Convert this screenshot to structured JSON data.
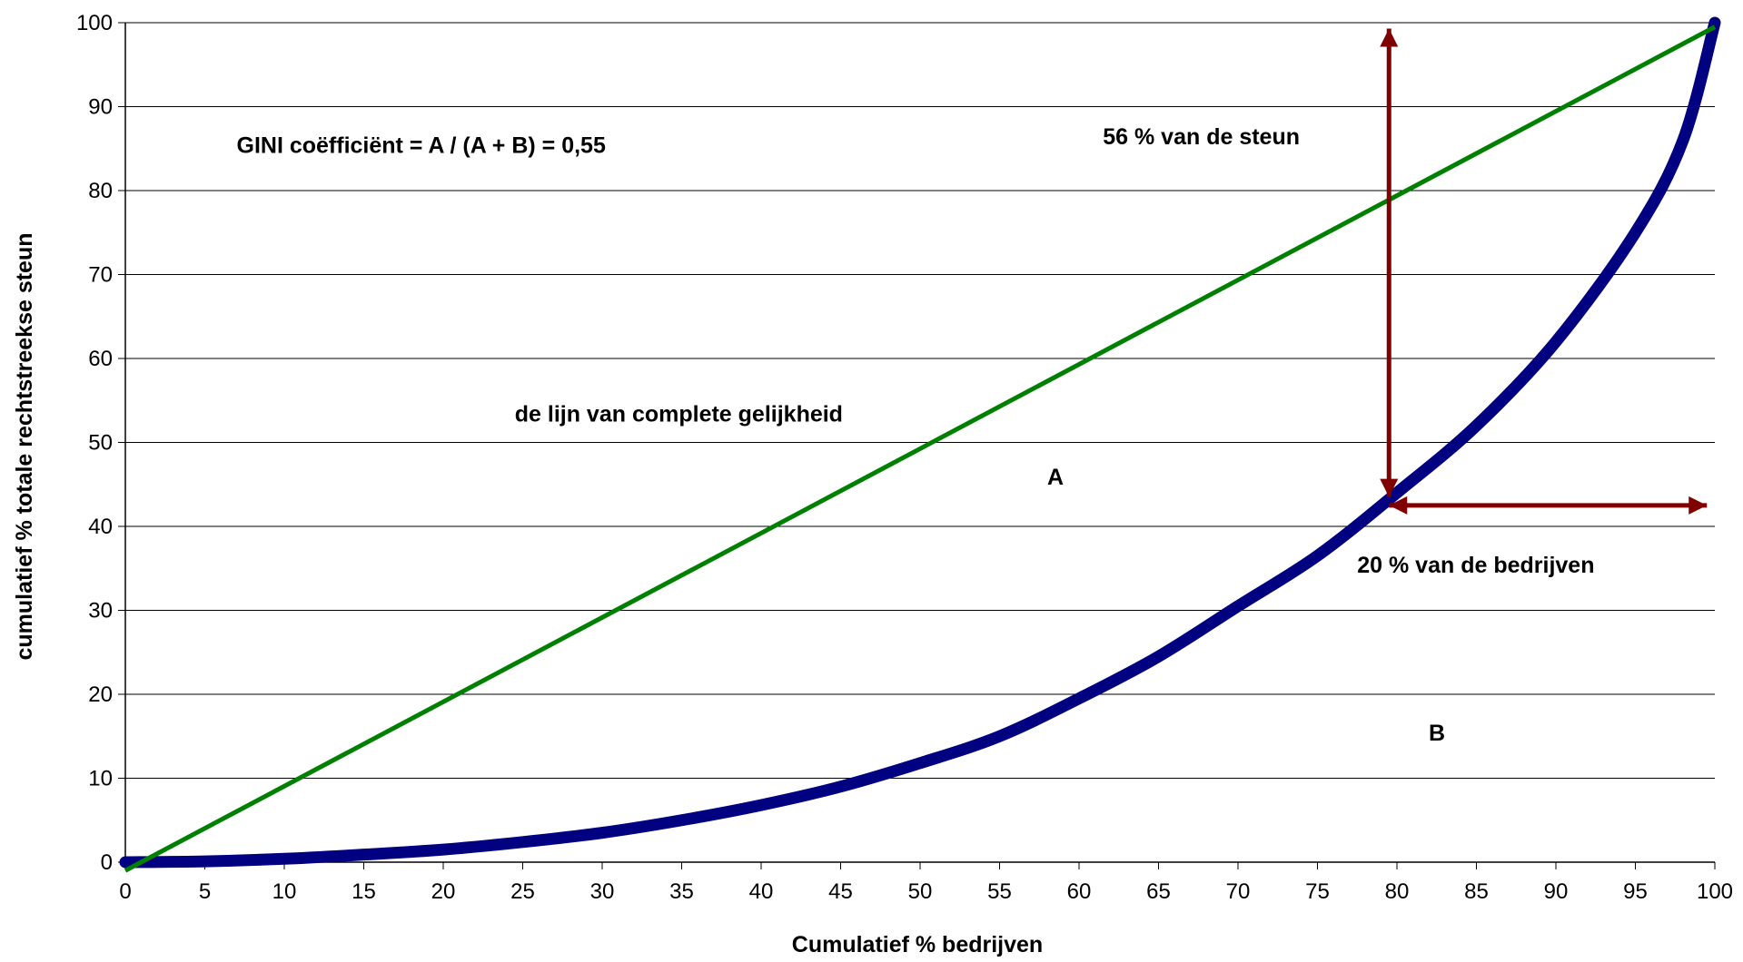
{
  "chart_data": {
    "type": "line",
    "title": "",
    "xlabel": "Cumulatief % bedrijven",
    "ylabel": "cumulatief  % totale rechtstreekse steun",
    "xlim": [
      0,
      100
    ],
    "ylim": [
      0,
      100
    ],
    "x_ticks": [
      "0",
      "5",
      "10",
      "15",
      "20",
      "25",
      "30",
      "35",
      "40",
      "45",
      "50",
      "55",
      "60",
      "65",
      "70",
      "75",
      "80",
      "85",
      "90",
      "95",
      "100"
    ],
    "y_ticks": [
      "0",
      "10",
      "20",
      "30",
      "40",
      "50",
      "60",
      "70",
      "80",
      "90",
      "100"
    ],
    "grid": "horizontal",
    "legend": "none",
    "series": [
      {
        "role": "lorenz-curve",
        "color": "#000080",
        "x": [
          0,
          5,
          10,
          15,
          20,
          25,
          30,
          35,
          40,
          45,
          50,
          55,
          60,
          65,
          70,
          75,
          80,
          85,
          90,
          95,
          98,
          100
        ],
        "y": [
          0,
          0.1,
          0.4,
          0.9,
          1.5,
          2.4,
          3.5,
          5.0,
          6.8,
          9.0,
          11.8,
          15.0,
          19.5,
          24.5,
          30.5,
          36.5,
          44.0,
          52.0,
          62.0,
          75.0,
          86.0,
          100
        ]
      },
      {
        "role": "equality-line",
        "color": "#008000",
        "x": [
          0,
          100
        ],
        "y": [
          -1,
          99.5
        ]
      }
    ],
    "arrows": [
      {
        "role": "vertical",
        "color": "#800000",
        "x1": 79.5,
        "y1": 43.5,
        "x2": 79.5,
        "y2": 99.3
      },
      {
        "role": "horizontal",
        "color": "#800000",
        "x1": 79.5,
        "y1": 42.5,
        "x2": 99.5,
        "y2": 42.5
      }
    ],
    "annotations": [
      {
        "text": "GINI coëfficiënt = A / (A + B) = 0,55",
        "x": 7,
        "y": 84.5
      },
      {
        "text": "56 % van de steun",
        "x": 61.5,
        "y": 85.5
      },
      {
        "text": "de lijn van complete gelijkheid",
        "x": 24.5,
        "y": 52.5
      },
      {
        "text": "A",
        "x": 58,
        "y": 45
      },
      {
        "text": "20 % van de bedrijven",
        "x": 77.5,
        "y": 34.5
      },
      {
        "text": "B",
        "x": 82,
        "y": 14.5
      }
    ]
  }
}
